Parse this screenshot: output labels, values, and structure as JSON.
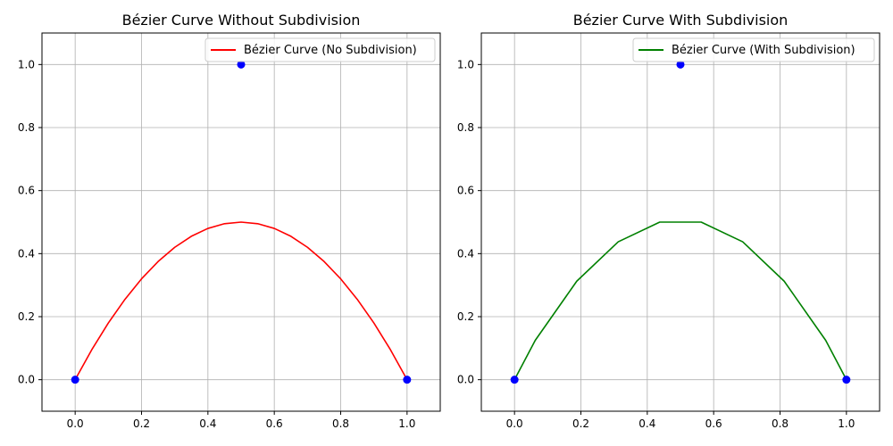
{
  "chart_data": [
    {
      "type": "line",
      "title": "Bézier Curve Without Subdivision",
      "xlabel": "",
      "ylabel": "",
      "xlim": [
        -0.1,
        1.1
      ],
      "ylim": [
        -0.1,
        1.1
      ],
      "xticks": [
        "0.0",
        "0.2",
        "0.4",
        "0.6",
        "0.8",
        "1.0"
      ],
      "yticks": [
        "0.0",
        "0.2",
        "0.4",
        "0.6",
        "0.8",
        "1.0"
      ],
      "grid": true,
      "legend_position": "top-right",
      "series": [
        {
          "name": "Bézier Curve (No Subdivision)",
          "color": "#ff0000",
          "kind": "curve",
          "x": [
            0,
            0.05,
            0.1,
            0.15,
            0.2,
            0.25,
            0.3,
            0.35,
            0.4,
            0.45,
            0.5,
            0.55,
            0.6,
            0.65,
            0.7,
            0.75,
            0.8,
            0.85,
            0.9,
            0.95,
            1.0
          ],
          "y": [
            0,
            0.095,
            0.18,
            0.255,
            0.32,
            0.375,
            0.42,
            0.455,
            0.48,
            0.495,
            0.5,
            0.495,
            0.48,
            0.455,
            0.42,
            0.375,
            0.32,
            0.255,
            0.18,
            0.095,
            0
          ]
        }
      ],
      "control_points": {
        "color": "#0000ff",
        "x": [
          0,
          0.5,
          1
        ],
        "y": [
          0,
          1,
          0
        ]
      }
    },
    {
      "type": "line",
      "title": "Bézier Curve With Subdivision",
      "xlabel": "",
      "ylabel": "",
      "xlim": [
        -0.1,
        1.1
      ],
      "ylim": [
        -0.1,
        1.1
      ],
      "xticks": [
        "0.0",
        "0.2",
        "0.4",
        "0.6",
        "0.8",
        "1.0"
      ],
      "yticks": [
        "0.0",
        "0.2",
        "0.4",
        "0.6",
        "0.8",
        "1.0"
      ],
      "grid": true,
      "legend_position": "top-right",
      "series": [
        {
          "name": "Bézier Curve (With Subdivision)",
          "color": "#008000",
          "kind": "polyline",
          "x": [
            0,
            0.0625,
            0.1875,
            0.3125,
            0.4375,
            0.5625,
            0.6875,
            0.8125,
            0.9375,
            1.0
          ],
          "y": [
            0,
            0.125,
            0.3125,
            0.4375,
            0.5,
            0.5,
            0.4375,
            0.3125,
            0.125,
            0
          ]
        }
      ],
      "control_points": {
        "color": "#0000ff",
        "x": [
          0,
          0.5,
          1
        ],
        "y": [
          0,
          1,
          0
        ]
      }
    }
  ]
}
